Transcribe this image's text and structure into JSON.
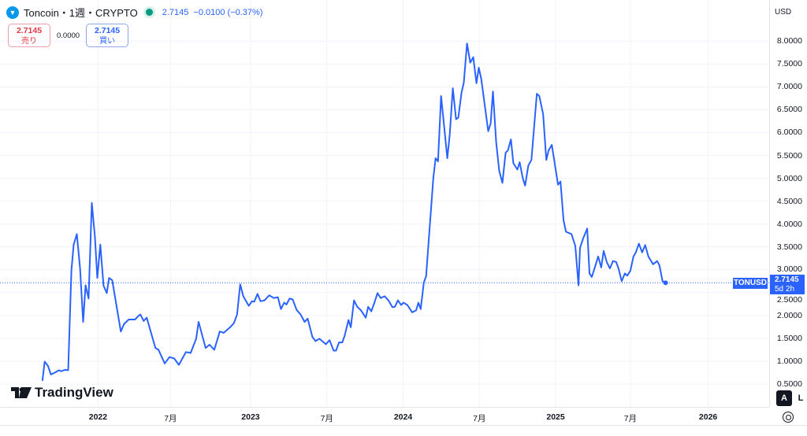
{
  "header": {
    "title": "Toncoin・1週・CRYPTO",
    "price": "2.7145",
    "change": "−0.0100 (−0.37%)"
  },
  "trade": {
    "sell_price": "2.7145",
    "sell_label": "売り",
    "spread": "0.0000",
    "buy_price": "2.7145",
    "buy_label": "買い"
  },
  "axis": {
    "currency": "USD",
    "auto": "A",
    "log": "L"
  },
  "price_label": {
    "symbol": "TONUSD",
    "price": "2.7145",
    "countdown": "5d 2h"
  },
  "brand": "TradingView",
  "colors": {
    "line": "#2962ff",
    "accent": "#2962ff",
    "sell": "#e03a45"
  },
  "chart_data": {
    "type": "line",
    "title": "Toncoin・1週・CRYPTO",
    "ylim": [
      0,
      8.9
    ],
    "yticks": [
      "0.5000",
      "1.0000",
      "1.5000",
      "2.0000",
      "2.5000",
      "3.0000",
      "3.5000",
      "4.0000",
      "4.5000",
      "5.0000",
      "5.5000",
      "6.0000",
      "6.5000",
      "7.0000",
      "7.5000",
      "8.0000"
    ],
    "ytick_values": [
      0.5,
      1,
      1.5,
      2,
      2.5,
      3,
      3.5,
      4,
      4.5,
      5,
      5.5,
      6,
      6.5,
      7,
      7.5,
      8
    ],
    "xticks": [
      {
        "x": 2022.0,
        "label": "2022",
        "year": true
      },
      {
        "x": 2022.475,
        "label": "7月"
      },
      {
        "x": 2023.0,
        "label": "2023",
        "year": true
      },
      {
        "x": 2023.5,
        "label": "7月"
      },
      {
        "x": 2024.0,
        "label": "2024",
        "year": true
      },
      {
        "x": 2024.5,
        "label": "7月"
      },
      {
        "x": 2025.0,
        "label": "2025",
        "year": true
      },
      {
        "x": 2025.49,
        "label": "7月"
      },
      {
        "x": 2026.0,
        "label": "2026",
        "year": true
      }
    ],
    "xlim": [
      2021.357,
      2026.4
    ],
    "last_price": 2.7145,
    "series": [
      {
        "name": "TONUSD",
        "points": [
          [
            2021.635,
            0.57
          ],
          [
            2021.65,
            0.99
          ],
          [
            2021.671,
            0.9
          ],
          [
            2021.691,
            0.71
          ],
          [
            2021.717,
            0.75
          ],
          [
            2021.743,
            0.8
          ],
          [
            2021.758,
            0.78
          ],
          [
            2021.784,
            0.81
          ],
          [
            2021.804,
            0.8
          ],
          [
            2021.825,
            2.98
          ],
          [
            2021.84,
            3.55
          ],
          [
            2021.861,
            3.78
          ],
          [
            2021.882,
            3.03
          ],
          [
            2021.902,
            1.86
          ],
          [
            2021.918,
            2.66
          ],
          [
            2021.938,
            2.37
          ],
          [
            2021.959,
            4.46
          ],
          [
            2021.979,
            3.73
          ],
          [
            2021.995,
            2.82
          ],
          [
            2022.015,
            3.55
          ],
          [
            2022.036,
            2.65
          ],
          [
            2022.057,
            2.49
          ],
          [
            2022.072,
            2.82
          ],
          [
            2022.093,
            2.77
          ],
          [
            2022.149,
            1.65
          ],
          [
            2022.17,
            1.81
          ],
          [
            2022.201,
            1.91
          ],
          [
            2022.242,
            1.91
          ],
          [
            2022.268,
            2.0
          ],
          [
            2022.278,
            2.02
          ],
          [
            2022.299,
            1.88
          ],
          [
            2022.319,
            1.95
          ],
          [
            2022.376,
            1.29
          ],
          [
            2022.396,
            1.25
          ],
          [
            2022.437,
            0.95
          ],
          [
            2022.468,
            1.09
          ],
          [
            2022.499,
            1.06
          ],
          [
            2022.53,
            0.92
          ],
          [
            2022.576,
            1.2
          ],
          [
            2022.607,
            1.18
          ],
          [
            2022.643,
            1.49
          ],
          [
            2022.659,
            1.86
          ],
          [
            2022.705,
            1.29
          ],
          [
            2022.731,
            1.36
          ],
          [
            2022.762,
            1.25
          ],
          [
            2022.798,
            1.65
          ],
          [
            2022.824,
            1.62
          ],
          [
            2022.865,
            1.74
          ],
          [
            2022.89,
            1.83
          ],
          [
            2022.911,
            2.02
          ],
          [
            2022.932,
            2.68
          ],
          [
            2022.952,
            2.42
          ],
          [
            2022.988,
            2.21
          ],
          [
            2023.009,
            2.31
          ],
          [
            2023.024,
            2.3
          ],
          [
            2023.045,
            2.47
          ],
          [
            2023.065,
            2.31
          ],
          [
            2023.091,
            2.33
          ],
          [
            2023.122,
            2.44
          ],
          [
            2023.153,
            2.38
          ],
          [
            2023.179,
            2.4
          ],
          [
            2023.199,
            2.14
          ],
          [
            2023.22,
            2.28
          ],
          [
            2023.235,
            2.24
          ],
          [
            2023.256,
            2.37
          ],
          [
            2023.276,
            2.35
          ],
          [
            2023.302,
            2.12
          ],
          [
            2023.328,
            2.02
          ],
          [
            2023.354,
            1.86
          ],
          [
            2023.374,
            1.93
          ],
          [
            2023.405,
            1.53
          ],
          [
            2023.426,
            1.44
          ],
          [
            2023.451,
            1.49
          ],
          [
            2023.493,
            1.37
          ],
          [
            2023.518,
            1.46
          ],
          [
            2023.544,
            1.23
          ],
          [
            2023.56,
            1.23
          ],
          [
            2023.58,
            1.41
          ],
          [
            2023.601,
            1.41
          ],
          [
            2023.616,
            1.55
          ],
          [
            2023.642,
            1.9
          ],
          [
            2023.657,
            1.74
          ],
          [
            2023.678,
            2.33
          ],
          [
            2023.699,
            2.19
          ],
          [
            2023.724,
            2.11
          ],
          [
            2023.755,
            1.95
          ],
          [
            2023.771,
            2.19
          ],
          [
            2023.791,
            2.09
          ],
          [
            2023.812,
            2.28
          ],
          [
            2023.832,
            2.49
          ],
          [
            2023.853,
            2.38
          ],
          [
            2023.879,
            2.42
          ],
          [
            2023.904,
            2.33
          ],
          [
            2023.93,
            2.18
          ],
          [
            2023.946,
            2.19
          ],
          [
            2023.966,
            2.33
          ],
          [
            2023.987,
            2.23
          ],
          [
            2024.002,
            2.28
          ],
          [
            2024.028,
            2.23
          ],
          [
            2024.059,
            2.07
          ],
          [
            2024.085,
            2.11
          ],
          [
            2024.1,
            2.28
          ],
          [
            2024.115,
            2.14
          ],
          [
            2024.136,
            2.72
          ],
          [
            2024.151,
            2.86
          ],
          [
            2024.198,
            5.0
          ],
          [
            2024.213,
            5.44
          ],
          [
            2024.229,
            5.37
          ],
          [
            2024.249,
            6.8
          ],
          [
            2024.29,
            5.44
          ],
          [
            2024.306,
            5.96
          ],
          [
            2024.326,
            6.97
          ],
          [
            2024.347,
            6.29
          ],
          [
            2024.362,
            6.33
          ],
          [
            2024.383,
            6.87
          ],
          [
            2024.398,
            7.09
          ],
          [
            2024.419,
            7.95
          ],
          [
            2024.44,
            7.53
          ],
          [
            2024.46,
            7.65
          ],
          [
            2024.481,
            7.08
          ],
          [
            2024.496,
            7.42
          ],
          [
            2024.512,
            7.18
          ],
          [
            2024.558,
            6.03
          ],
          [
            2024.574,
            6.2
          ],
          [
            2024.589,
            6.9
          ],
          [
            2024.61,
            5.79
          ],
          [
            2024.63,
            5.17
          ],
          [
            2024.651,
            4.9
          ],
          [
            2024.672,
            5.56
          ],
          [
            2024.687,
            5.61
          ],
          [
            2024.707,
            5.85
          ],
          [
            2024.723,
            5.33
          ],
          [
            2024.749,
            5.19
          ],
          [
            2024.764,
            5.35
          ],
          [
            2024.785,
            5.0
          ],
          [
            2024.8,
            4.84
          ],
          [
            2024.821,
            5.28
          ],
          [
            2024.841,
            5.4
          ],
          [
            2024.877,
            6.85
          ],
          [
            2024.893,
            6.8
          ],
          [
            2024.918,
            6.4
          ],
          [
            2024.939,
            5.4
          ],
          [
            2024.954,
            5.61
          ],
          [
            2024.975,
            5.73
          ],
          [
            2025.016,
            4.86
          ],
          [
            2025.032,
            4.93
          ],
          [
            2025.052,
            4.08
          ],
          [
            2025.068,
            3.83
          ],
          [
            2025.104,
            3.78
          ],
          [
            2025.129,
            3.52
          ],
          [
            2025.15,
            2.66
          ],
          [
            2025.16,
            3.48
          ],
          [
            2025.181,
            3.69
          ],
          [
            2025.207,
            3.9
          ],
          [
            2025.222,
            2.92
          ],
          [
            2025.237,
            2.84
          ],
          [
            2025.258,
            3.06
          ],
          [
            2025.279,
            3.29
          ],
          [
            2025.299,
            3.05
          ],
          [
            2025.315,
            3.41
          ],
          [
            2025.335,
            3.17
          ],
          [
            2025.356,
            3.03
          ],
          [
            2025.376,
            3.19
          ],
          [
            2025.397,
            3.17
          ],
          [
            2025.412,
            3.03
          ],
          [
            2025.433,
            2.75
          ],
          [
            2025.454,
            2.92
          ],
          [
            2025.469,
            2.87
          ],
          [
            2025.49,
            2.98
          ],
          [
            2025.51,
            3.29
          ],
          [
            2025.526,
            3.38
          ],
          [
            2025.546,
            3.57
          ],
          [
            2025.567,
            3.38
          ],
          [
            2025.587,
            3.54
          ],
          [
            2025.608,
            3.29
          ],
          [
            2025.639,
            3.12
          ],
          [
            2025.665,
            3.19
          ],
          [
            2025.68,
            3.1
          ],
          [
            2025.701,
            2.75
          ],
          [
            2025.721,
            2.7145
          ]
        ]
      }
    ]
  }
}
